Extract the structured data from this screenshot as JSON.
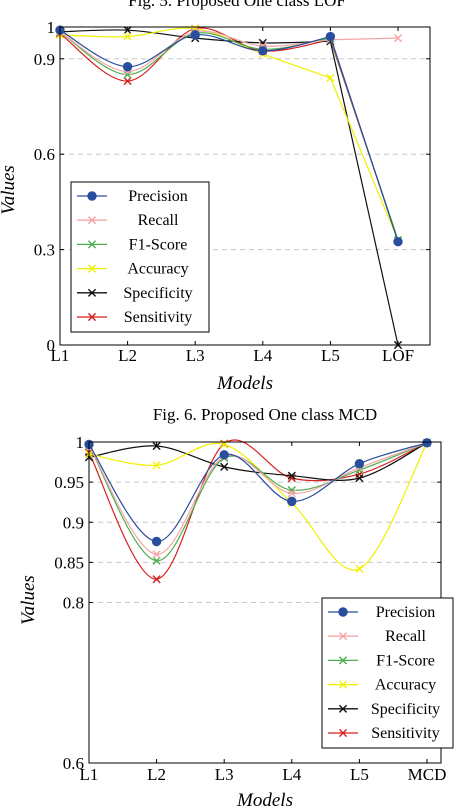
{
  "captions": {
    "top": "Fig. 5. Proposed One class LOF",
    "middle": "Fig. 6. Proposed One class MCD"
  },
  "colors": {
    "Precision": "#2a4d9c",
    "Recall": "#f4a6a6",
    "F1-Score": "#4caf50",
    "Accuracy": "#f0f000",
    "Specificity": "#111111",
    "Sensitivity": "#d62020"
  },
  "chart_data": [
    {
      "type": "line",
      "categories": [
        "L1",
        "L2",
        "L3",
        "L4",
        "L5",
        "LOF"
      ],
      "xlabel": "Models",
      "ylabel": "Values",
      "ylim": [
        0,
        1
      ],
      "yticks": [
        "0",
        "0.3",
        "0.6",
        "0.9",
        "1"
      ],
      "grid": "horizontal dashed",
      "legend_position": "bottom-left",
      "series": [
        {
          "name": "Precision",
          "marker": "circle",
          "values": [
            0.99,
            0.875,
            0.975,
            0.925,
            0.97,
            0.325
          ]
        },
        {
          "name": "Recall",
          "marker": "x",
          "values": [
            0.985,
            0.86,
            0.985,
            0.94,
            0.96,
            0.965
          ]
        },
        {
          "name": "F1-Score",
          "marker": "x",
          "values": [
            0.985,
            0.85,
            0.98,
            0.93,
            0.965,
            0.33
          ]
        },
        {
          "name": "Accuracy",
          "marker": "x",
          "values": [
            0.975,
            0.97,
            0.995,
            0.915,
            0.84,
            0.33
          ]
        },
        {
          "name": "Specificity",
          "marker": "x",
          "values": [
            0.985,
            0.99,
            0.965,
            0.95,
            0.955,
            0.0
          ]
        },
        {
          "name": "Sensitivity",
          "marker": "x",
          "values": [
            0.98,
            0.83,
            0.995,
            0.925,
            0.96,
            0.33
          ]
        }
      ]
    },
    {
      "type": "line",
      "categories": [
        "L1",
        "L2",
        "L3",
        "L4",
        "L5",
        "MCD"
      ],
      "xlabel": "Models",
      "ylabel": "Values",
      "ylim": [
        0.6,
        1
      ],
      "yticks": [
        "0.6",
        "0.8",
        "0.85",
        "0.9",
        "0.95",
        "1"
      ],
      "grid": "horizontal dashed",
      "legend_position": "bottom-right",
      "series": [
        {
          "name": "Precision",
          "marker": "circle",
          "values": [
            0.997,
            0.876,
            0.984,
            0.926,
            0.973,
            0.999
          ]
        },
        {
          "name": "Recall",
          "marker": "x",
          "values": [
            0.996,
            0.86,
            0.982,
            0.936,
            0.968,
            0.999
          ]
        },
        {
          "name": "F1-Score",
          "marker": "x",
          "values": [
            0.996,
            0.852,
            0.98,
            0.94,
            0.965,
            0.999
          ]
        },
        {
          "name": "Accuracy",
          "marker": "x",
          "values": [
            0.985,
            0.971,
            0.997,
            0.924,
            0.842,
            0.999
          ]
        },
        {
          "name": "Specificity",
          "marker": "x",
          "values": [
            0.981,
            0.995,
            0.969,
            0.958,
            0.955,
            0.999
          ]
        },
        {
          "name": "Sensitivity",
          "marker": "x",
          "values": [
            0.987,
            0.829,
            0.998,
            0.955,
            0.96,
            0.999
          ]
        }
      ]
    }
  ]
}
